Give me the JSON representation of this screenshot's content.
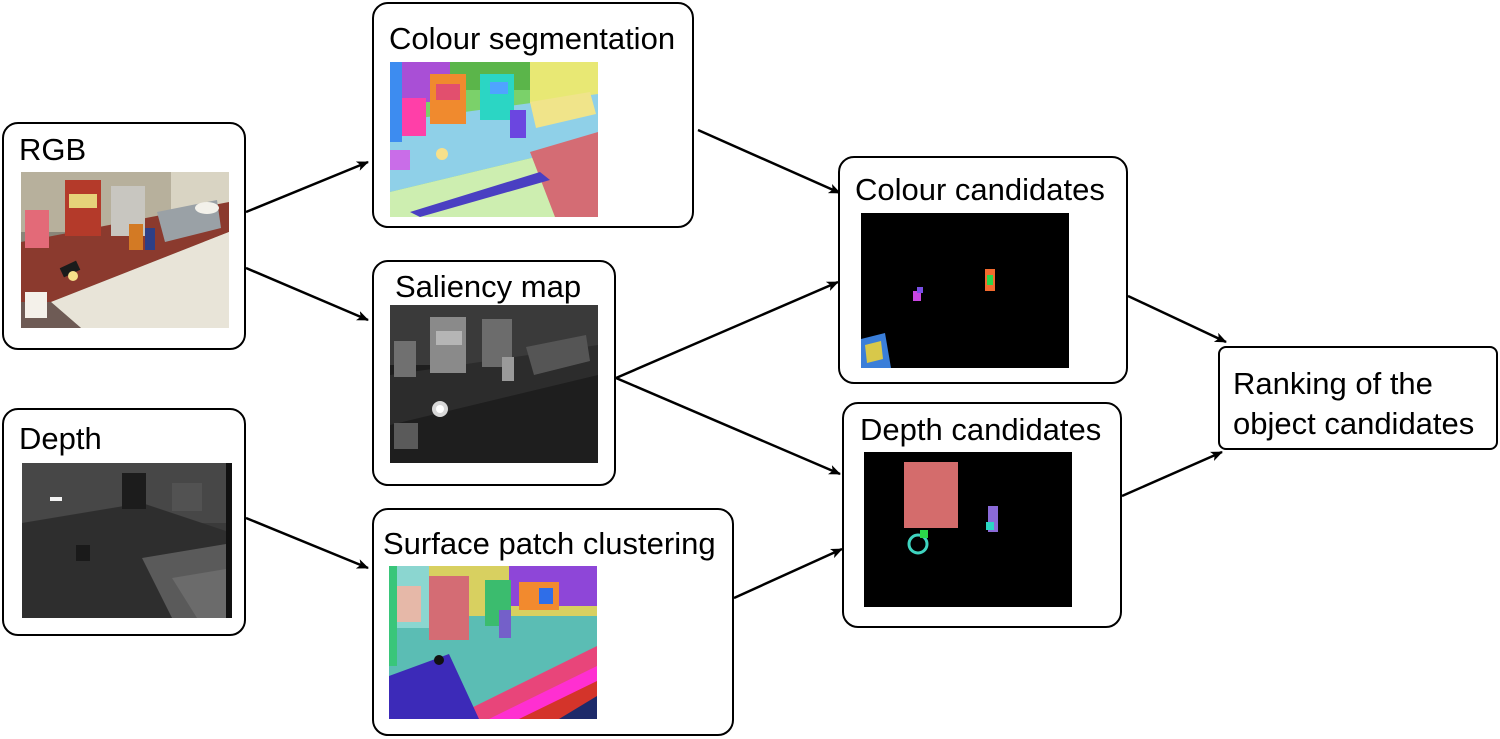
{
  "nodes": {
    "rgb": {
      "label": "RGB"
    },
    "depth": {
      "label": "Depth"
    },
    "colour_segmentation": {
      "label": "Colour segmentation"
    },
    "saliency_map": {
      "label": "Saliency map"
    },
    "surface_patch_clustering": {
      "label": "Surface patch clustering"
    },
    "colour_candidates": {
      "label": "Colour candidates"
    },
    "depth_candidates": {
      "label": "Depth candidates"
    },
    "ranking": {
      "label": "Ranking of the object candidates"
    }
  },
  "thumbnail_images": {
    "rgb": "photo of a kitchen counter with cereal box, kettle, sink and flashlight",
    "depth": "grayscale depth map",
    "colour_segmentation": "colour segmentation map",
    "saliency_map": "grayscale saliency map",
    "surface_patch_clustering": "coloured surface patch clusters",
    "colour_candidates": "black image with small coloured candidate regions",
    "depth_candidates": "black image with coloured candidate regions"
  },
  "edges": [
    {
      "from": "rgb",
      "to": "colour_segmentation"
    },
    {
      "from": "rgb",
      "to": "saliency_map"
    },
    {
      "from": "depth",
      "to": "surface_patch_clustering"
    },
    {
      "from": "colour_segmentation",
      "to": "colour_candidates"
    },
    {
      "from": "saliency_map",
      "to": "colour_candidates"
    },
    {
      "from": "saliency_map",
      "to": "depth_candidates"
    },
    {
      "from": "surface_patch_clustering",
      "to": "depth_candidates"
    },
    {
      "from": "colour_candidates",
      "to": "ranking"
    },
    {
      "from": "depth_candidates",
      "to": "ranking"
    }
  ],
  "colors": {
    "stroke": "#000000",
    "background": "#ffffff"
  }
}
